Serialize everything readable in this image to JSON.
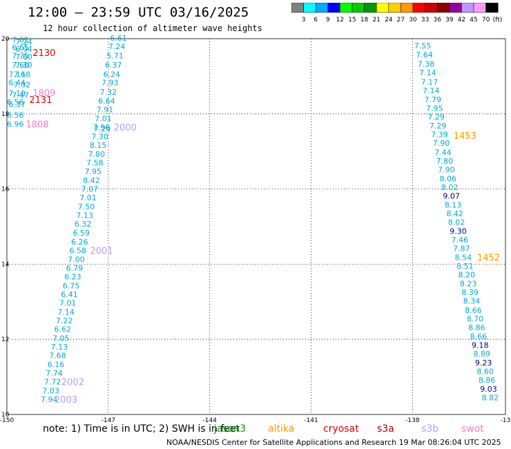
{
  "header": {
    "title": "12:00 – 23:59 UTC 03/16/2025",
    "subtitle": "12 hour collection of altimeter wave heights"
  },
  "colorbar": {
    "unit": "(ft)",
    "labels": [
      "3",
      "6",
      "9",
      "12",
      "15",
      "18",
      "21",
      "24",
      "27",
      "30",
      "33",
      "36",
      "39",
      "42",
      "45",
      "70"
    ],
    "colors": [
      "#808080",
      "#00ffff",
      "#00aaff",
      "#0000ff",
      "#00ff00",
      "#00cc00",
      "#009900",
      "#ffff00",
      "#ffcc00",
      "#ff9900",
      "#ff0000",
      "#cc0000",
      "#880000",
      "#990099",
      "#bb99ff",
      "#ff99ff",
      "#000000"
    ]
  },
  "map": {
    "lon_ticks": [
      "-150",
      "-147",
      "-144",
      "-141",
      "-138",
      "-13"
    ],
    "lat_ticks": [
      "20",
      "18",
      "16",
      "14",
      "12",
      "10"
    ],
    "observations": [
      {
        "t": "7.62",
        "lon": -149.6,
        "lat": 19.97
      },
      {
        "t": "7.24",
        "lon": -149.5,
        "lat": 19.92
      },
      {
        "t": "6.65",
        "lon": -149.6,
        "lat": 19.77
      },
      {
        "t": "6.94",
        "lon": -149.5,
        "lat": 19.72
      },
      {
        "t": "7.75",
        "lon": -149.6,
        "lat": 19.55
      },
      {
        "t": "7.60",
        "lon": -149.5,
        "lat": 19.52
      },
      {
        "t": "7.60",
        "lon": -149.6,
        "lat": 19.3
      },
      {
        "t": "7.30",
        "lon": -149.5,
        "lat": 19.3
      },
      {
        "t": "7.16",
        "lon": -149.7,
        "lat": 19.05
      },
      {
        "t": "7.18",
        "lon": -149.55,
        "lat": 19.05
      },
      {
        "t": "6.44",
        "lon": -149.7,
        "lat": 18.83
      },
      {
        "t": "7.02",
        "lon": -149.55,
        "lat": 18.78
      },
      {
        "t": "7.10",
        "lon": -149.7,
        "lat": 18.55
      },
      {
        "t": "7.47",
        "lon": -149.6,
        "lat": 18.5
      },
      {
        "t": "6.56",
        "lon": -149.75,
        "lat": 18.32
      },
      {
        "t": "6.37",
        "lon": -149.7,
        "lat": 18.25
      },
      {
        "t": "6.56",
        "lon": -149.75,
        "lat": 17.97
      },
      {
        "t": "6.96",
        "lon": -149.75,
        "lat": 17.73
      },
      {
        "t": "6.61",
        "lon": -146.7,
        "lat": 20.02
      },
      {
        "t": "7.24",
        "lon": -146.75,
        "lat": 19.8
      },
      {
        "t": "5.71",
        "lon": -146.8,
        "lat": 19.55
      },
      {
        "t": "6.37",
        "lon": -146.85,
        "lat": 19.3
      },
      {
        "t": "6.24",
        "lon": -146.9,
        "lat": 19.05
      },
      {
        "t": "7.93",
        "lon": -146.95,
        "lat": 18.83
      },
      {
        "t": "7.32",
        "lon": -147.0,
        "lat": 18.58
      },
      {
        "t": "6.64",
        "lon": -147.05,
        "lat": 18.35
      },
      {
        "t": "7.91",
        "lon": -147.1,
        "lat": 18.12
      },
      {
        "t": "7.01",
        "lon": -147.15,
        "lat": 17.88
      },
      {
        "t": "7.96",
        "lon": -147.2,
        "lat": 17.65
      },
      {
        "t": "7.29",
        "lon": -147.18,
        "lat": 17.6
      },
      {
        "t": "7.30",
        "lon": -147.25,
        "lat": 17.4
      },
      {
        "t": "8.15",
        "lon": -147.3,
        "lat": 17.17
      },
      {
        "t": "7.80",
        "lon": -147.35,
        "lat": 16.93
      },
      {
        "t": "7.58",
        "lon": -147.4,
        "lat": 16.7
      },
      {
        "t": "7.95",
        "lon": -147.45,
        "lat": 16.47
      },
      {
        "t": "8.42",
        "lon": -147.5,
        "lat": 16.23
      },
      {
        "t": "7.07",
        "lon": -147.55,
        "lat": 16.0
      },
      {
        "t": "7.01",
        "lon": -147.6,
        "lat": 15.77
      },
      {
        "t": "7.50",
        "lon": -147.65,
        "lat": 15.53
      },
      {
        "t": "7.13",
        "lon": -147.7,
        "lat": 15.3
      },
      {
        "t": "6.32",
        "lon": -147.75,
        "lat": 15.07
      },
      {
        "t": "6.59",
        "lon": -147.8,
        "lat": 14.83
      },
      {
        "t": "6.26",
        "lon": -147.85,
        "lat": 14.6
      },
      {
        "t": "6.58",
        "lon": -147.9,
        "lat": 14.37
      },
      {
        "t": "7.00",
        "lon": -147.95,
        "lat": 14.13
      },
      {
        "t": "6.79",
        "lon": -148.0,
        "lat": 13.9
      },
      {
        "t": "6.23",
        "lon": -148.05,
        "lat": 13.67
      },
      {
        "t": "6.75",
        "lon": -148.1,
        "lat": 13.43
      },
      {
        "t": "6.41",
        "lon": -148.15,
        "lat": 13.2
      },
      {
        "t": "7.01",
        "lon": -148.2,
        "lat": 12.97
      },
      {
        "t": "7.14",
        "lon": -148.25,
        "lat": 12.73
      },
      {
        "t": "7.22",
        "lon": -148.3,
        "lat": 12.5
      },
      {
        "t": "6.62",
        "lon": -148.35,
        "lat": 12.27
      },
      {
        "t": "7.05",
        "lon": -148.4,
        "lat": 12.03
      },
      {
        "t": "7.13",
        "lon": -148.45,
        "lat": 11.8
      },
      {
        "t": "7.68",
        "lon": -148.5,
        "lat": 11.57
      },
      {
        "t": "6.16",
        "lon": -148.55,
        "lat": 11.33
      },
      {
        "t": "7.74",
        "lon": -148.6,
        "lat": 11.1
      },
      {
        "t": "7.72",
        "lon": -148.65,
        "lat": 10.87
      },
      {
        "t": "7.03",
        "lon": -148.7,
        "lat": 10.63
      },
      {
        "t": "7.94",
        "lon": -148.75,
        "lat": 10.4
      },
      {
        "t": "7.55",
        "lon": -137.7,
        "lat": 19.82
      },
      {
        "t": "7.64",
        "lon": -137.65,
        "lat": 19.58
      },
      {
        "t": "7.38",
        "lon": -137.6,
        "lat": 19.33
      },
      {
        "t": "7.14",
        "lon": -137.55,
        "lat": 19.1
      },
      {
        "t": "7.17",
        "lon": -137.5,
        "lat": 18.85
      },
      {
        "t": "7.14",
        "lon": -137.45,
        "lat": 18.62
      },
      {
        "t": "7.79",
        "lon": -137.4,
        "lat": 18.38
      },
      {
        "t": "7.95",
        "lon": -137.35,
        "lat": 18.15
      },
      {
        "t": "7.29",
        "lon": -137.3,
        "lat": 17.92
      },
      {
        "t": "7.29",
        "lon": -137.25,
        "lat": 17.68
      },
      {
        "t": "7.39",
        "lon": -137.2,
        "lat": 17.45
      },
      {
        "t": "7.90",
        "lon": -137.15,
        "lat": 17.22
      },
      {
        "t": "7.44",
        "lon": -137.1,
        "lat": 16.98
      },
      {
        "t": "7.80",
        "lon": -137.05,
        "lat": 16.75
      },
      {
        "t": "7.90",
        "lon": -137.0,
        "lat": 16.52
      },
      {
        "t": "8.06",
        "lon": -136.95,
        "lat": 16.28
      },
      {
        "t": "8.02",
        "lon": -136.9,
        "lat": 16.05
      },
      {
        "t": "9.07",
        "lon": -136.85,
        "lat": 15.82,
        "dark": true
      },
      {
        "t": "8.13",
        "lon": -136.8,
        "lat": 15.58
      },
      {
        "t": "8.42",
        "lon": -136.75,
        "lat": 15.35
      },
      {
        "t": "8.02",
        "lon": -136.7,
        "lat": 15.12
      },
      {
        "t": "9.30",
        "lon": -136.65,
        "lat": 14.88,
        "dark": true
      },
      {
        "t": "7.46",
        "lon": -136.6,
        "lat": 14.65
      },
      {
        "t": "7.87",
        "lon": -136.55,
        "lat": 14.42
      },
      {
        "t": "8.54",
        "lon": -136.5,
        "lat": 14.18
      },
      {
        "t": "8.51",
        "lon": -136.45,
        "lat": 13.95
      },
      {
        "t": "8.20",
        "lon": -136.4,
        "lat": 13.72
      },
      {
        "t": "8.23",
        "lon": -136.35,
        "lat": 13.48
      },
      {
        "t": "8.39",
        "lon": -136.3,
        "lat": 13.25
      },
      {
        "t": "8.34",
        "lon": -136.25,
        "lat": 13.02
      },
      {
        "t": "8.66",
        "lon": -136.2,
        "lat": 12.78
      },
      {
        "t": "8.70",
        "lon": -136.15,
        "lat": 12.55
      },
      {
        "t": "8.86",
        "lon": -136.1,
        "lat": 12.32
      },
      {
        "t": "8.66",
        "lon": -136.05,
        "lat": 12.08
      },
      {
        "t": "9.18",
        "lon": -136.0,
        "lat": 11.85,
        "dark": true
      },
      {
        "t": "8.89",
        "lon": -135.95,
        "lat": 11.62
      },
      {
        "t": "9.23",
        "lon": -135.9,
        "lat": 11.38,
        "dark": true
      },
      {
        "t": "8.60",
        "lon": -135.85,
        "lat": 11.15
      },
      {
        "t": "8.86",
        "lon": -135.8,
        "lat": 10.92
      },
      {
        "t": "9.03",
        "lon": -135.75,
        "lat": 10.68,
        "dark": true
      },
      {
        "t": "8.82",
        "lon": -135.7,
        "lat": 10.45
      }
    ],
    "passes": [
      {
        "t": "2130",
        "lon": -148.9,
        "lat": 19.63,
        "color": "#dd0000"
      },
      {
        "t": "1809",
        "lon": -148.9,
        "lat": 18.57,
        "color": "#ff77cc"
      },
      {
        "t": "2131",
        "lon": -149.0,
        "lat": 18.38,
        "color": "#dd0000"
      },
      {
        "t": "1808",
        "lon": -149.1,
        "lat": 17.73,
        "color": "#ff77cc"
      },
      {
        "t": "2000",
        "lon": -146.5,
        "lat": 17.65,
        "color": "#bb99ee"
      },
      {
        "t": "2001",
        "lon": -147.2,
        "lat": 14.37,
        "color": "#bb99ee"
      },
      {
        "t": "2002",
        "lon": -148.05,
        "lat": 10.87,
        "color": "#bb99ee"
      },
      {
        "t": "2003",
        "lon": -148.25,
        "lat": 10.4,
        "color": "#bb99ee"
      },
      {
        "t": "1453",
        "lon": -136.45,
        "lat": 17.43,
        "color": "#ff9900"
      },
      {
        "t": "1452",
        "lon": -135.75,
        "lat": 14.18,
        "color": "#ff9900"
      }
    ]
  },
  "note": "note: 1) Time is in UTC; 2) SWH is in feet",
  "legend": [
    {
      "label": "jason3",
      "color": "#009900"
    },
    {
      "label": "altika",
      "color": "#ff9900"
    },
    {
      "label": "cryosat",
      "color": "#dd0000"
    },
    {
      "label": "s3a",
      "color": "#990000"
    },
    {
      "label": "s3b",
      "color": "#bb99ee"
    },
    {
      "label": "swot",
      "color": "#ff77cc"
    }
  ],
  "footer": "NOAA/NESDIS Center for Satellite Applications and Research   19 Mar 08:26:04 UTC 2025"
}
